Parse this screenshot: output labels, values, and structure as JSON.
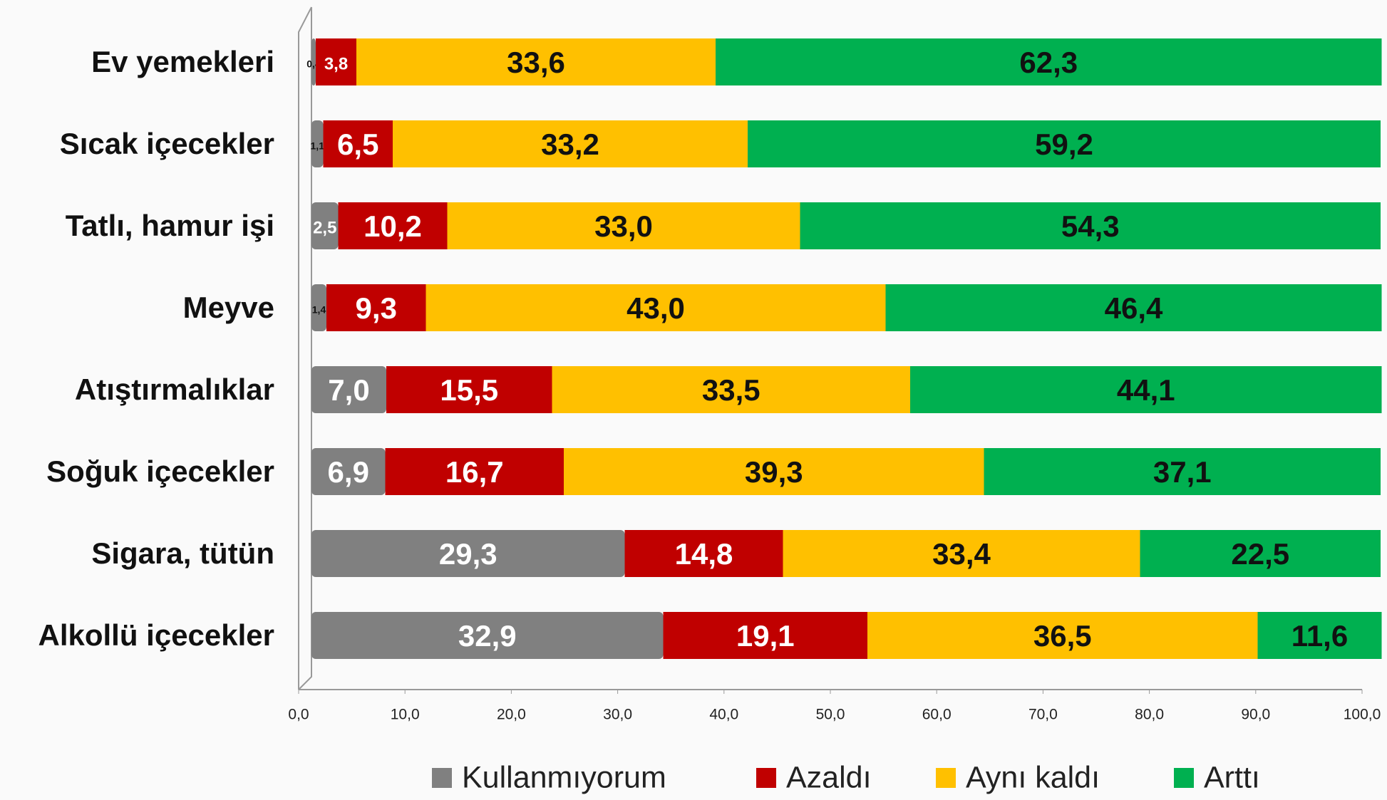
{
  "chart_data": {
    "type": "stacked_bar_horizontal",
    "categories": [
      "Ev yemekleri",
      "Sıcak içecekler",
      "Tatlı, hamur işi",
      "Meyve",
      "Atıştırmalıklar",
      "Soğuk içecekler",
      "Sigara, tütün",
      "Alkollü içecekler"
    ],
    "series": [
      {
        "name": "Kullanmıyorum",
        "color": "#808080",
        "values": [
          0.4,
          1.1,
          2.5,
          1.4,
          7.0,
          6.9,
          29.3,
          32.9
        ],
        "value_labels": [
          "0,4",
          "1,1",
          "2,5",
          "1,4",
          "7,0",
          "6,9",
          "29,3",
          "32,9"
        ]
      },
      {
        "name": "Azaldı",
        "color": "#c00000",
        "values": [
          3.8,
          6.5,
          10.2,
          9.3,
          15.5,
          16.7,
          14.8,
          19.1
        ],
        "value_labels": [
          "3,8",
          "6,5",
          "10,2",
          "9,3",
          "15,5",
          "16,7",
          "14,8",
          "19,1"
        ]
      },
      {
        "name": "Aynı kaldı",
        "color": "#ffc000",
        "values": [
          33.6,
          33.2,
          33.0,
          43.0,
          33.5,
          39.3,
          33.4,
          36.5
        ],
        "value_labels": [
          "33,6",
          "33,2",
          "33,0",
          "43,0",
          "33,5",
          "39,3",
          "33,4",
          "36,5"
        ]
      },
      {
        "name": "Arttı",
        "color": "#00b050",
        "values": [
          62.3,
          59.2,
          54.3,
          46.4,
          44.1,
          37.1,
          22.5,
          11.6
        ],
        "value_labels": [
          "62,3",
          "59,2",
          "54,3",
          "46,4",
          "44,1",
          "37,1",
          "22,5",
          "11,6"
        ]
      }
    ],
    "xlim": [
      0,
      100
    ],
    "xticks": [
      {
        "value": 0,
        "label": "0,0"
      },
      {
        "value": 10,
        "label": "10,0"
      },
      {
        "value": 20,
        "label": "20,0"
      },
      {
        "value": 30,
        "label": "30,0"
      },
      {
        "value": 40,
        "label": "40,0"
      },
      {
        "value": 50,
        "label": "50,0"
      },
      {
        "value": 60,
        "label": "60,0"
      },
      {
        "value": 70,
        "label": "70,0"
      },
      {
        "value": 80,
        "label": "80,0"
      },
      {
        "value": 90,
        "label": "90,0"
      },
      {
        "value": 100,
        "label": "100,0"
      }
    ],
    "legend": "bottom"
  }
}
